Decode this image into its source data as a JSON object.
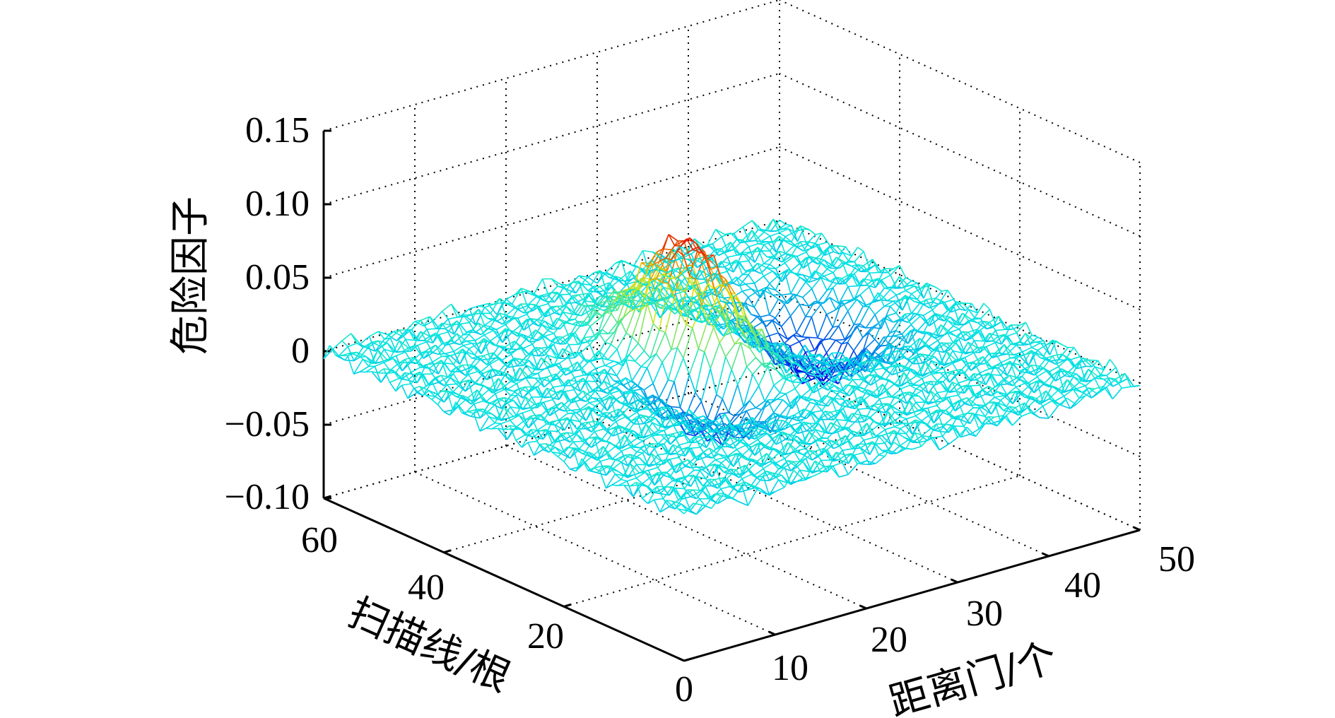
{
  "chart_data": {
    "type": "surface",
    "title": "",
    "xlabel": "距离门/个",
    "ylabel": "扫描线/根",
    "zlabel": "危险因子",
    "xlim": [
      0,
      50
    ],
    "ylim": [
      0,
      60
    ],
    "zlim": [
      -0.1,
      0.15
    ],
    "x_ticks": [
      "10",
      "20",
      "30",
      "40",
      "50"
    ],
    "y_ticks": [
      "0",
      "20",
      "40",
      "60"
    ],
    "z_ticks": [
      "−0.10",
      "−0.05",
      "0",
      "0.05",
      "0.10",
      "0.15"
    ],
    "grid": true,
    "colormap": "jet",
    "mesh": {
      "x_count": 51,
      "y_count": 61
    },
    "features": {
      "peak": {
        "x": 24,
        "y": 34,
        "z": 0.1
      },
      "troughs": [
        {
          "x": 22,
          "y": 28,
          "z": -0.055
        },
        {
          "x": 38,
          "y": 36,
          "z": -0.04
        }
      ],
      "baseline_z": 0.0
    }
  }
}
